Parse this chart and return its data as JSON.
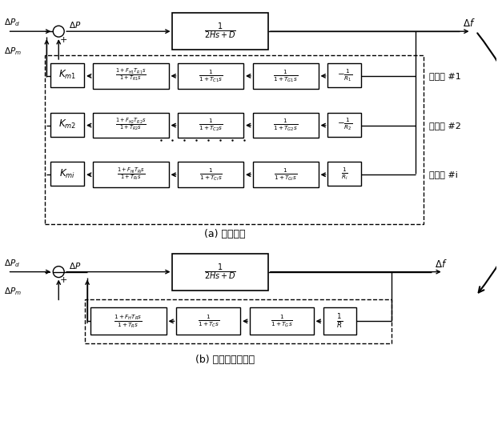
{
  "fig_width": 6.22,
  "fig_height": 5.36,
  "dpi": 100,
  "background": "#ffffff",
  "title_a": "(a) 多机模型",
  "title_b": "(b) 聚合的单机模型",
  "gen_labels": [
    "发电机 #1",
    "发电机 #2",
    "发电机 #i"
  ],
  "km_labels": [
    "$K_{m1}$",
    "$K_{m2}$",
    "$K_{mi}$"
  ],
  "reheater_texts": [
    "$\\frac{1+F_{H1}T_{R1}s}{1+T_{R1}s}$",
    "$\\frac{1+F_{H2}T_{R2}s}{1+T_{R2}s}$",
    "$\\frac{1+F_{Hi}T_{Ri}s}{1+T_{Ri}s}$"
  ],
  "chest_texts": [
    "$\\frac{1}{1+T_{C1}s}$",
    "$\\frac{1}{1+T_{C2}s}$",
    "$\\frac{1}{1+T_{Ci}s}$"
  ],
  "gov_texts": [
    "$\\frac{1}{1+T_{G1}s}$",
    "$\\frac{1}{1+T_{G2}s}$",
    "$\\frac{1}{1+T_{Gi}s}$"
  ],
  "droop_texts": [
    "$-\\frac{1}{R_1}$",
    "$-\\frac{1}{R_2}$",
    "$\\frac{1}{R_i}$"
  ],
  "reh_b": "$\\frac{1+F_H T_R s}{1+T_R s}$",
  "che_b": "$\\frac{1}{1+T_C s}$",
  "gov_b": "$\\frac{1}{1+T_G s}$",
  "r_b": "$\\frac{1}{R}$",
  "plant_tf": "$\\frac{1}{2Hs+D}$"
}
